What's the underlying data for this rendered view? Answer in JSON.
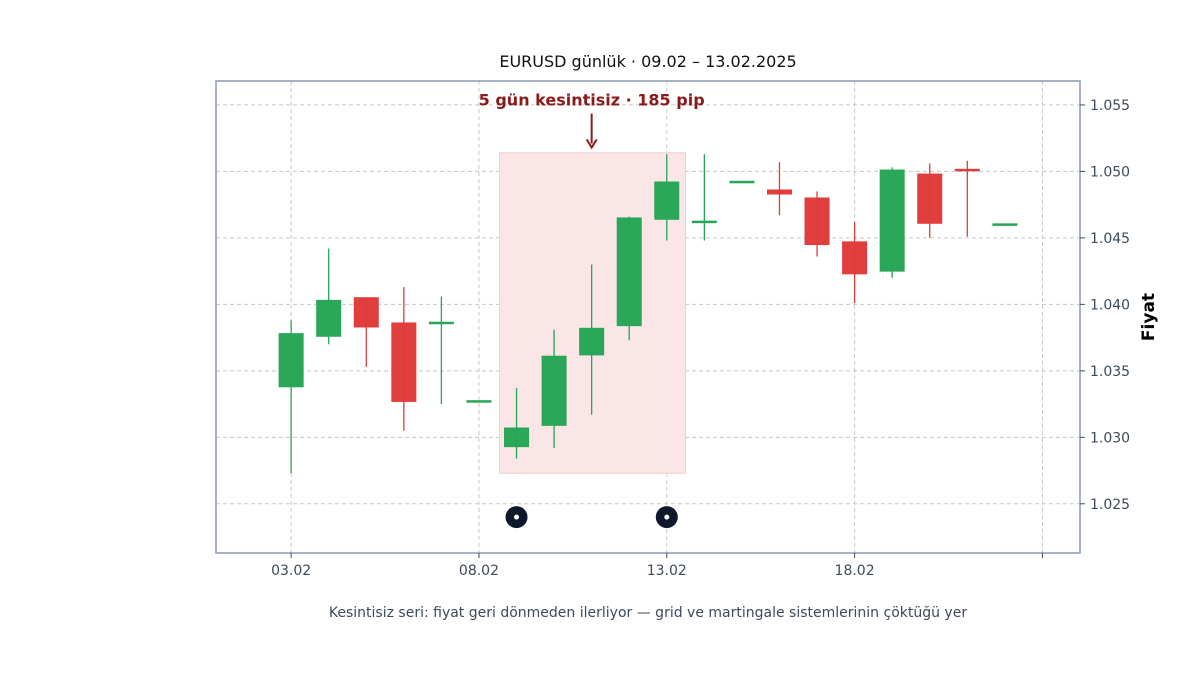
{
  "chart_data": {
    "type": "candlestick",
    "title": "EURUSD günlük · 09.02 – 13.02.2025",
    "caption": "Kesintisiz seri: fiyat geri dönmeden ilerliyor — grid ve martingale sistemlerinin çöktüğü yer",
    "ylabel": "Fiyat",
    "xlabel": "",
    "ylim": [
      1.0213,
      1.0568
    ],
    "xlim": [
      -2,
      21
    ],
    "grid": true,
    "x_ticks": [
      {
        "index": 0,
        "label": "03.02"
      },
      {
        "index": 5,
        "label": "08.02"
      },
      {
        "index": 10,
        "label": "13.02"
      },
      {
        "index": 15,
        "label": "18.02"
      },
      {
        "index": 20,
        "label": ""
      }
    ],
    "y_ticks": [
      {
        "value": 1.025,
        "label": "1.025"
      },
      {
        "value": 1.03,
        "label": "1.030"
      },
      {
        "value": 1.035,
        "label": "1.035"
      },
      {
        "value": 1.04,
        "label": "1.040"
      },
      {
        "value": 1.045,
        "label": "1.045"
      },
      {
        "value": 1.05,
        "label": "1.050"
      },
      {
        "value": 1.055,
        "label": "1.055"
      }
    ],
    "candles": [
      {
        "i": 0,
        "open": 1.0338,
        "high": 1.0388,
        "low": 1.0273,
        "close": 1.0378
      },
      {
        "i": 1,
        "open": 1.0376,
        "high": 1.0442,
        "low": 1.037,
        "close": 1.0403
      },
      {
        "i": 2,
        "open": 1.0405,
        "high": 1.0405,
        "low": 1.0353,
        "close": 1.0383
      },
      {
        "i": 3,
        "open": 1.0386,
        "high": 1.0413,
        "low": 1.0305,
        "close": 1.0327
      },
      {
        "i": 4,
        "open": 1.0386,
        "high": 1.0406,
        "low": 1.0325,
        "close": 1.0386
      },
      {
        "i": 5,
        "open": 1.0327,
        "high": 1.0327,
        "low": 1.0327,
        "close": 1.0327
      },
      {
        "i": 6,
        "open": 1.0293,
        "high": 1.0337,
        "low": 1.0284,
        "close": 1.0307
      },
      {
        "i": 7,
        "open": 1.0309,
        "high": 1.0381,
        "low": 1.0292,
        "close": 1.0361
      },
      {
        "i": 8,
        "open": 1.0362,
        "high": 1.043,
        "low": 1.0317,
        "close": 1.0382
      },
      {
        "i": 9,
        "open": 1.0384,
        "high": 1.0466,
        "low": 1.0373,
        "close": 1.0465
      },
      {
        "i": 10,
        "open": 1.0464,
        "high": 1.0513,
        "low": 1.0448,
        "close": 1.0492
      },
      {
        "i": 11,
        "open": 1.0462,
        "high": 1.0513,
        "low": 1.0448,
        "close": 1.0462
      },
      {
        "i": 12,
        "open": 1.0491,
        "high": 1.0491,
        "low": 1.0491,
        "close": 1.0492
      },
      {
        "i": 13,
        "open": 1.0486,
        "high": 1.0507,
        "low": 1.0467,
        "close": 1.0483
      },
      {
        "i": 14,
        "open": 1.048,
        "high": 1.0485,
        "low": 1.0436,
        "close": 1.0445
      },
      {
        "i": 15,
        "open": 1.0447,
        "high": 1.0462,
        "low": 1.0401,
        "close": 1.0423
      },
      {
        "i": 16,
        "open": 1.0425,
        "high": 1.0503,
        "low": 1.042,
        "close": 1.0501
      },
      {
        "i": 17,
        "open": 1.0498,
        "high": 1.0506,
        "low": 1.045,
        "close": 1.0461
      },
      {
        "i": 18,
        "open": 1.0501,
        "high": 1.0508,
        "low": 1.0451,
        "close": 1.05
      },
      {
        "i": 19,
        "open": 1.046,
        "high": 1.046,
        "low": 1.046,
        "close": 1.046
      }
    ],
    "highlight": {
      "x_start": 5.55,
      "x_end": 10.5,
      "y_low": 1.0273,
      "y_high": 1.0514
    },
    "annotation": {
      "text": "5 gün kesintisiz · 185 pip",
      "x": 8.0,
      "y": 1.0554,
      "arrow_to": 1.0518
    },
    "markers": [
      {
        "x": 6,
        "y": 1.024
      },
      {
        "x": 10,
        "y": 1.024
      }
    ],
    "colors": {
      "up": "#27a556",
      "down": "#e03a3a",
      "highlight_fill": "#fae6e6",
      "annotation": "#8b1a1a",
      "marker": "#0f172a",
      "frame": "#8a9ab0",
      "grid": "#c8c8c8"
    }
  }
}
